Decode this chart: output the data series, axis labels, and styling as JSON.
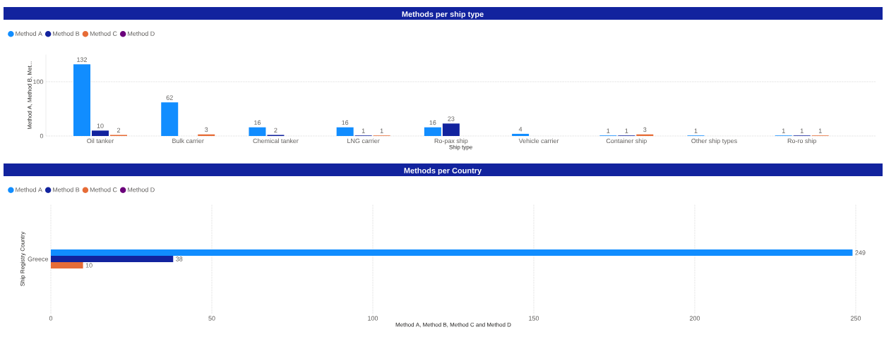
{
  "chart_data": [
    {
      "type": "bar",
      "title": "Methods per ship type",
      "xlabel": "Ship type",
      "ylabel": "Method A, Method B, Met...",
      "categories": [
        "Oil tanker",
        "Bulk carrier",
        "Chemical tanker",
        "LNG carrier",
        "Ro-pax ship",
        "Vehicle carrier",
        "Container ship",
        "Other ship types",
        "Ro-ro ship"
      ],
      "series": [
        {
          "name": "Method A",
          "color": "#118dff",
          "values": [
            132,
            62,
            16,
            16,
            16,
            4,
            1,
            1,
            1
          ]
        },
        {
          "name": "Method B",
          "color": "#12239e",
          "values": [
            10,
            null,
            2,
            1,
            23,
            null,
            1,
            null,
            1
          ]
        },
        {
          "name": "Method C",
          "color": "#e66c37",
          "values": [
            2,
            3,
            null,
            1,
            null,
            null,
            3,
            null,
            1
          ]
        },
        {
          "name": "Method D",
          "color": "#6b007b",
          "values": [
            null,
            null,
            null,
            null,
            null,
            null,
            null,
            null,
            null
          ]
        }
      ],
      "ylim": [
        0,
        150
      ],
      "yticks": [
        0,
        100
      ],
      "grid": "y",
      "legend": "top left",
      "data_labels": true
    },
    {
      "type": "bar",
      "orientation": "horizontal",
      "title": "Methods per Country",
      "xlabel": "Method A, Method B, Method C and Method D",
      "ylabel": "Ship Registry Country",
      "categories": [
        "Greece"
      ],
      "series": [
        {
          "name": "Method A",
          "color": "#118dff",
          "values": [
            249
          ]
        },
        {
          "name": "Method B",
          "color": "#12239e",
          "values": [
            38
          ]
        },
        {
          "name": "Method C",
          "color": "#e66c37",
          "values": [
            10
          ]
        },
        {
          "name": "Method D",
          "color": "#6b007b",
          "values": [
            null
          ]
        }
      ],
      "xlim": [
        0,
        250
      ],
      "xticks": [
        0,
        50,
        100,
        150,
        200,
        250
      ],
      "grid": "x",
      "legend": "top left",
      "data_labels": true
    }
  ]
}
